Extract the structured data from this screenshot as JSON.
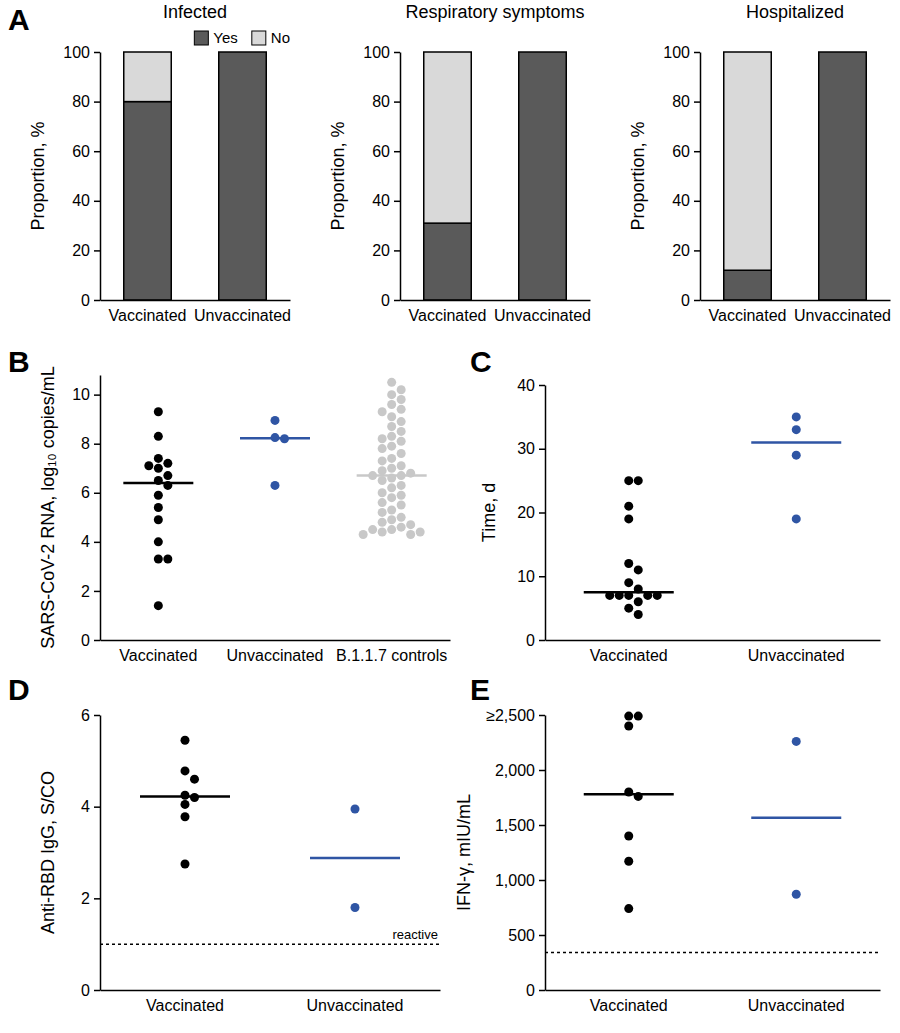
{
  "chart_data": [
    {
      "type": "bar",
      "panel": "A",
      "title": "Infected",
      "ylabel": "Proportion, %",
      "categories": [
        "Vaccinated",
        "Unvaccinated"
      ],
      "series": [
        {
          "name": "Yes",
          "color": "#5a5a5a",
          "values": [
            80,
            100
          ]
        },
        {
          "name": "No",
          "color": "#d9d9d9",
          "values": [
            20,
            0
          ]
        }
      ],
      "stacked": true,
      "legend": "top",
      "ylim": [
        0,
        100
      ],
      "yticks": [
        0,
        20,
        40,
        60,
        80,
        100
      ]
    },
    {
      "type": "bar",
      "title": "Respiratory symptoms",
      "ylabel": "Proportion, %",
      "categories": [
        "Vaccinated",
        "Unvaccinated"
      ],
      "series": [
        {
          "color": "#5a5a5a",
          "values": [
            31,
            100
          ]
        },
        {
          "color": "#d9d9d9",
          "values": [
            69,
            0
          ]
        }
      ],
      "stacked": true,
      "ylim": [
        0,
        100
      ],
      "yticks": [
        0,
        20,
        40,
        60,
        80,
        100
      ]
    },
    {
      "type": "bar",
      "title": "Hospitalized",
      "ylabel": "Proportion, %",
      "categories": [
        "Vaccinated",
        "Unvaccinated"
      ],
      "series": [
        {
          "color": "#5a5a5a",
          "values": [
            12,
            100
          ]
        },
        {
          "color": "#d9d9d9",
          "values": [
            88,
            0
          ]
        }
      ],
      "stacked": true,
      "ylim": [
        0,
        100
      ],
      "yticks": [
        0,
        20,
        40,
        60,
        80,
        100
      ]
    },
    {
      "type": "strip",
      "panel": "B",
      "ylabel": "SARS-CoV-2 RNA, log₁₀ copies/mL",
      "categories": [
        "Vaccinated",
        "Unvaccinated",
        "B.1.1.7 controls"
      ],
      "colors": [
        "#000000",
        "#2f55a4",
        "#c8c8c8"
      ],
      "points": [
        [
          9.3,
          8.3,
          7.4,
          7.2,
          7.1,
          7.0,
          6.7,
          6.5,
          6.3,
          5.9,
          5.4,
          4.9,
          4.0,
          3.3,
          3.3,
          1.4
        ],
        [
          8.95,
          8.25,
          8.2,
          6.3
        ],
        [
          10.5,
          10.2,
          10.0,
          9.8,
          9.6,
          9.4,
          9.3,
          9.1,
          8.9,
          8.7,
          8.5,
          8.3,
          8.2,
          8.1,
          7.9,
          7.8,
          7.6,
          7.4,
          7.3,
          7.1,
          7.0,
          6.9,
          6.8,
          6.7,
          6.7,
          6.6,
          6.5,
          6.3,
          6.2,
          6.0,
          5.9,
          5.8,
          5.6,
          5.5,
          5.3,
          5.2,
          5.0,
          4.9,
          4.8,
          4.7,
          4.6,
          4.5,
          4.5,
          4.4,
          4.4,
          4.3,
          4.3
        ]
      ],
      "medians": [
        6.4,
        8.22,
        6.7
      ],
      "ylim": [
        0,
        10.8
      ],
      "yticks": [
        0,
        2,
        4,
        6,
        8,
        10
      ]
    },
    {
      "type": "strip",
      "panel": "C",
      "ylabel": "Time, d",
      "categories": [
        "Vaccinated",
        "Unvaccinated"
      ],
      "colors": [
        "#000000",
        "#2f55a4"
      ],
      "points": [
        [
          25,
          25,
          21,
          19,
          12,
          11,
          9,
          8,
          7,
          7,
          7,
          7,
          7,
          6,
          5,
          4
        ],
        [
          35,
          33,
          29,
          19
        ]
      ],
      "medians": [
        7.5,
        31
      ],
      "ylim": [
        0,
        40
      ],
      "yticks": [
        0,
        10,
        20,
        30,
        40
      ]
    },
    {
      "type": "strip",
      "panel": "D",
      "ylabel": "Anti-RBD IgG, S/CO",
      "categories": [
        "Vaccinated",
        "Unvaccinated"
      ],
      "colors": [
        "#000000",
        "#2f55a4"
      ],
      "points": [
        [
          5.45,
          4.78,
          4.6,
          4.25,
          4.2,
          4.05,
          3.78,
          2.75
        ],
        [
          3.95,
          1.8
        ]
      ],
      "medians": [
        4.22,
        2.88
      ],
      "reference_line": {
        "value": 1,
        "label": "reactive"
      },
      "ylim": [
        0,
        6
      ],
      "yticks": [
        0,
        2,
        4,
        6
      ]
    },
    {
      "type": "strip",
      "panel": "E",
      "ylabel": "IFN-γ, mIU/mL",
      "categories": [
        "Vaccinated",
        "Unvaccinated"
      ],
      "colors": [
        "#000000",
        "#2f55a4"
      ],
      "points": [
        [
          2490,
          2490,
          2400,
          1800,
          1760,
          1400,
          1170,
          740
        ],
        [
          2260,
          870
        ]
      ],
      "medians": [
        1780,
        1565
      ],
      "reference_line": {
        "value": 340
      },
      "ylim": [
        0,
        2500
      ],
      "yticks": [
        0,
        500,
        {
          "value": 1000,
          "label": "1,000"
        },
        {
          "value": 1500,
          "label": "1,500"
        },
        {
          "value": 2000,
          "label": "2,000"
        },
        {
          "value": 2500,
          "label": "≥2,500"
        }
      ]
    }
  ]
}
